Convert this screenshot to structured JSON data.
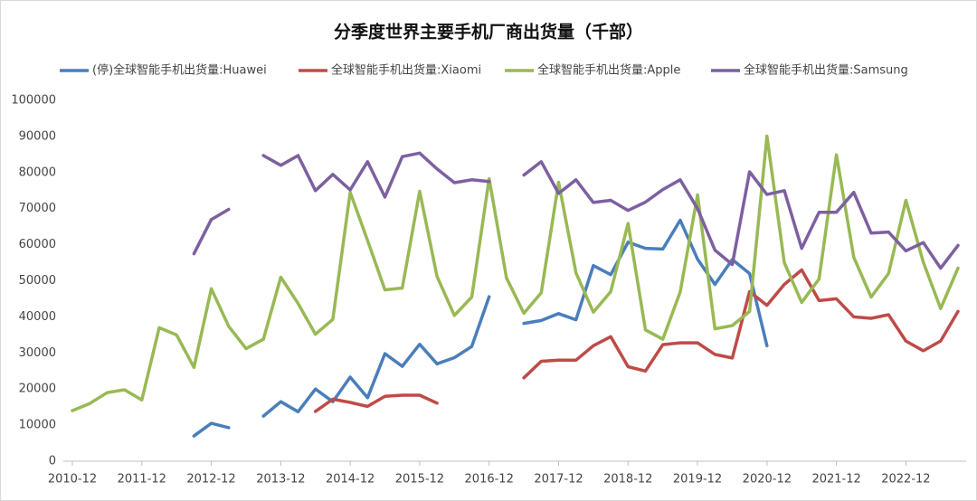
{
  "chart_data": {
    "type": "line",
    "title": "分季度世界主要手机厂商出货量（千部）",
    "categories": [
      "2010-12",
      null,
      null,
      null,
      "2011-12",
      null,
      null,
      null,
      "2012-12",
      null,
      null,
      null,
      "2013-12",
      null,
      null,
      null,
      "2014-12",
      null,
      null,
      null,
      "2015-12",
      null,
      null,
      null,
      "2016-12",
      null,
      null,
      null,
      "2017-12",
      null,
      null,
      null,
      "2018-12",
      null,
      null,
      null,
      "2019-12",
      null,
      null,
      null,
      "2020-12",
      null,
      null,
      null,
      "2021-12",
      null,
      null,
      null,
      "2022-12",
      null,
      null,
      null
    ],
    "ylim": [
      0,
      100000
    ],
    "yticks": [
      0,
      10000,
      20000,
      30000,
      40000,
      50000,
      60000,
      70000,
      80000,
      90000,
      100000
    ],
    "grid": false,
    "legend": "top",
    "series": [
      {
        "name": "(停)全球智能手机出货量:Huawei",
        "color": "#4a7ebb",
        "values": [
          null,
          null,
          null,
          null,
          null,
          null,
          null,
          7000,
          10500,
          9300,
          null,
          12500,
          16500,
          13700,
          20000,
          16500,
          23300,
          17600,
          29800,
          26300,
          32400,
          27000,
          28700,
          31800,
          45600,
          null,
          38200,
          39000,
          40900,
          39200,
          54200,
          51700,
          60700,
          59000,
          58800,
          66800,
          56000,
          49000,
          55900,
          52000,
          32000,
          null,
          null,
          null,
          null,
          null,
          null,
          null,
          null,
          null,
          null,
          null
        ]
      },
      {
        "name": "全球智能手机出货量:Xiaomi",
        "color": "#be4b48",
        "values": [
          null,
          null,
          null,
          null,
          null,
          null,
          null,
          null,
          null,
          null,
          null,
          null,
          null,
          null,
          13800,
          17200,
          16300,
          15200,
          18000,
          18300,
          18300,
          16100,
          null,
          null,
          null,
          null,
          23100,
          27700,
          28000,
          28000,
          32000,
          34500,
          26200,
          25000,
          32300,
          32800,
          32800,
          29600,
          28600,
          47000,
          43200,
          49000,
          53000,
          44500,
          45000,
          40000,
          39600,
          40600,
          33300,
          30600,
          33300,
          41500
        ]
      },
      {
        "name": "全球智能手机出货量:Apple",
        "color": "#98b954",
        "values": [
          14000,
          16000,
          19000,
          19800,
          17000,
          37000,
          35000,
          26000,
          47800,
          37400,
          31200,
          33800,
          51000,
          43700,
          35200,
          39300,
          74500,
          61200,
          47500,
          48000,
          74800,
          51200,
          40400,
          45500,
          78300,
          50800,
          41000,
          46700,
          77300,
          52200,
          41300,
          47000,
          65900,
          36400,
          33800,
          46900,
          73800,
          36700,
          37600,
          41500,
          90100,
          55000,
          44000,
          50500,
          84900,
          56500,
          45500,
          52000,
          72300,
          55200,
          42300,
          53500
        ]
      },
      {
        "name": "全球智能手机出货量:Samsung",
        "color": "#7d60a0",
        "values": [
          null,
          null,
          null,
          null,
          null,
          null,
          null,
          57500,
          67000,
          69800,
          null,
          84700,
          82000,
          84700,
          75000,
          79500,
          75200,
          83000,
          73200,
          84400,
          85400,
          81000,
          77200,
          78000,
          77500,
          null,
          79300,
          83000,
          74200,
          78000,
          71700,
          72300,
          69500,
          71800,
          75300,
          78000,
          70000,
          58500,
          54500,
          80200,
          73900,
          75000,
          59000,
          69000,
          69000,
          74500,
          63200,
          63500,
          58300,
          60600,
          53500,
          59800
        ]
      }
    ]
  }
}
